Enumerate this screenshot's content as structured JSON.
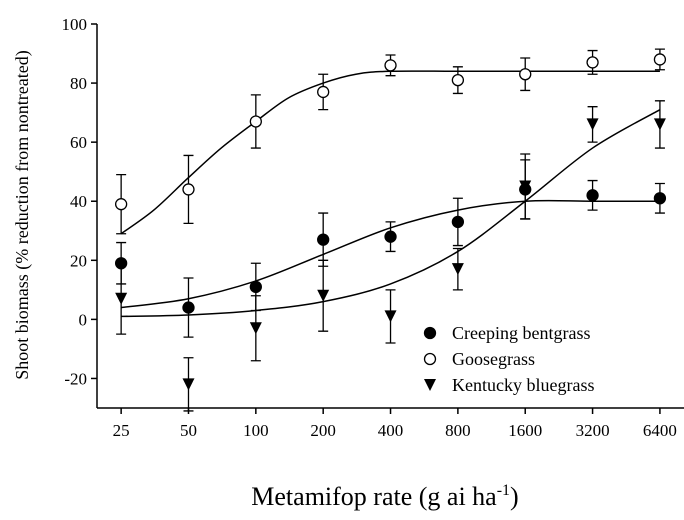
{
  "chart_data": {
    "type": "scatter",
    "xlabel": "Metamifop rate (g ai ha",
    "xlabel_sup": "-1",
    "xlabel_end": ")",
    "ylabel": "Shoot biomass (% reduction from nontreated)",
    "log_x": true,
    "xlim": [
      19.5,
      8200
    ],
    "xticks": [
      25,
      50,
      100,
      200,
      400,
      800,
      1600,
      3200,
      6400
    ],
    "ylim": [
      -30,
      100
    ],
    "yticks": [
      -20,
      0,
      20,
      40,
      60,
      80,
      100
    ],
    "legend": "lower right",
    "x": [
      25,
      50,
      100,
      200,
      400,
      800,
      1600,
      3200,
      6400
    ],
    "series": [
      {
        "name": "Creeping bentgrass",
        "marker": "filled-circle",
        "color": "#000000",
        "values": [
          19,
          4,
          11,
          27,
          28,
          33,
          44,
          42,
          41
        ],
        "errors": [
          7,
          10,
          8,
          9,
          5,
          8,
          10,
          5,
          5
        ],
        "fit_x": [
          25,
          50,
          100,
          200,
          400,
          800,
          1600,
          3200,
          6400
        ],
        "fit_values": [
          4,
          7,
          13,
          22,
          31,
          37,
          40,
          40,
          40
        ]
      },
      {
        "name": "Goosegrass",
        "marker": "open-circle",
        "color": "#000000",
        "values": [
          39,
          44,
          67,
          77,
          86,
          81,
          83,
          87,
          88
        ],
        "errors": [
          10,
          11.5,
          9,
          6,
          3.5,
          4.5,
          5.5,
          4,
          3.5
        ],
        "fit_x": [
          25,
          35,
          50,
          70,
          100,
          140,
          200,
          280,
          400,
          800,
          1600,
          3200,
          6400
        ],
        "fit_values": [
          29,
          37,
          48,
          58,
          67,
          75,
          80,
          83,
          84,
          84,
          84,
          84,
          84
        ]
      },
      {
        "name": "Kentucky bluegrass",
        "marker": "down-triangle",
        "color": "#000000",
        "values": [
          7,
          -22,
          -3,
          8,
          1,
          17,
          45,
          66,
          66
        ],
        "errors": [
          12,
          9,
          11,
          12,
          9,
          7,
          11,
          6,
          8
        ],
        "fit_x": [
          25,
          50,
          100,
          200,
          400,
          800,
          1600,
          3200,
          6400
        ],
        "fit_values": [
          1,
          1.5,
          3,
          6,
          12,
          23,
          40,
          58,
          71
        ]
      }
    ]
  }
}
